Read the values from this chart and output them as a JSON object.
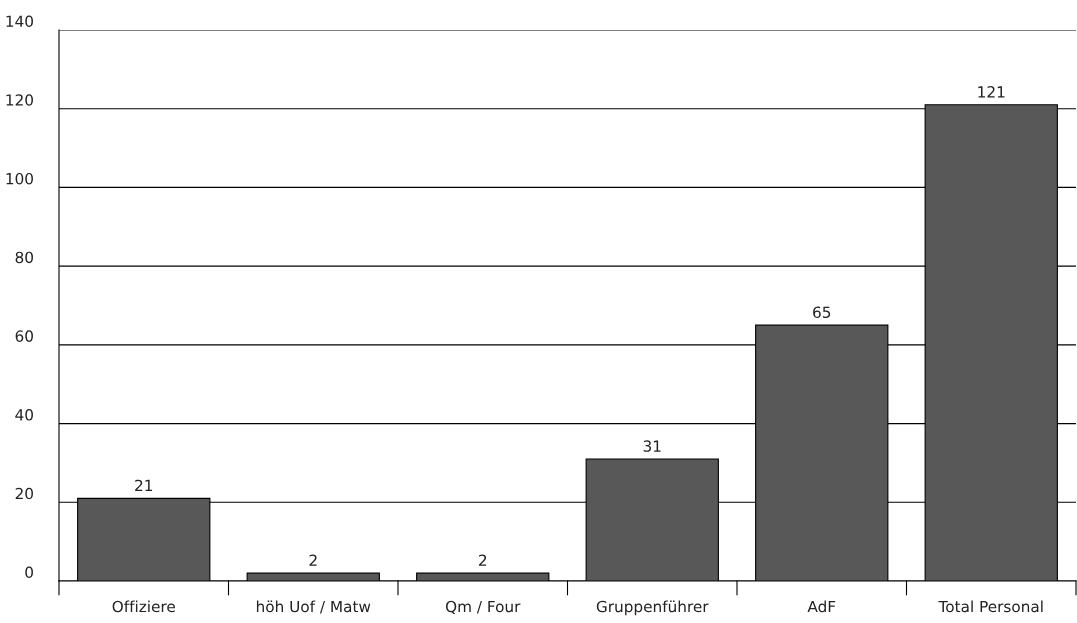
{
  "chart_data": {
    "type": "bar",
    "categories": [
      "Offiziere",
      "höh Uof / Matw",
      "Qm / Four",
      "Gruppenführer",
      "AdF",
      "Total Personal"
    ],
    "values": [
      21,
      2,
      2,
      31,
      65,
      121
    ],
    "color": "#575857",
    "ylim": [
      0,
      140
    ],
    "yticks": [
      0,
      20,
      40,
      60,
      80,
      100,
      120,
      140
    ],
    "grid": "y",
    "data_labels": true
  }
}
